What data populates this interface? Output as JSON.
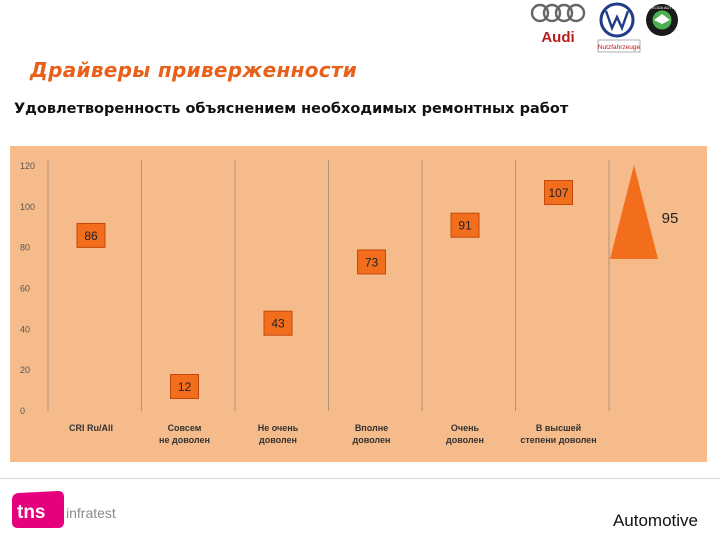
{
  "header": {
    "title": "Драйверы приверженности",
    "subtitle": "Удовлетворенность объяснением необходимых ремонтных работ",
    "logos": {
      "audi_label": "Audi",
      "vw_nutz_label": "Nutzfahrzeuge",
      "skoda_label": "SKODA AUTO"
    }
  },
  "footer": {
    "brand_tns": "tns",
    "brand_infratest": "infratest",
    "section_label": "Automotive"
  },
  "colors": {
    "accent": "#e8601a",
    "chart_bg": "#f6bb8a",
    "marker_fill": "#f26d1c",
    "marker_border": "#c24a0e"
  },
  "chart_data": {
    "type": "scatter",
    "title": "",
    "xlabel": "",
    "ylabel": "",
    "ylim": [
      0,
      120
    ],
    "yticks": [
      0,
      20,
      40,
      60,
      80,
      100,
      120
    ],
    "grid": false,
    "categories": [
      [
        "CRI Ru/All"
      ],
      [
        "Совсем",
        "не доволен"
      ],
      [
        "Не очень",
        "доволен"
      ],
      [
        "Вполне",
        "доволен"
      ],
      [
        "Очень",
        "доволен"
      ],
      [
        "В высшей",
        "степени доволен"
      ]
    ],
    "points": [
      {
        "category": 0,
        "value": 86
      },
      {
        "category": 1,
        "value": 12
      },
      {
        "category": 2,
        "value": 43
      },
      {
        "category": 3,
        "value": 73
      },
      {
        "category": 4,
        "value": 91
      },
      {
        "category": 5,
        "value": 107
      }
    ],
    "annotation": {
      "shape": "triangle-up",
      "value": 95
    }
  }
}
